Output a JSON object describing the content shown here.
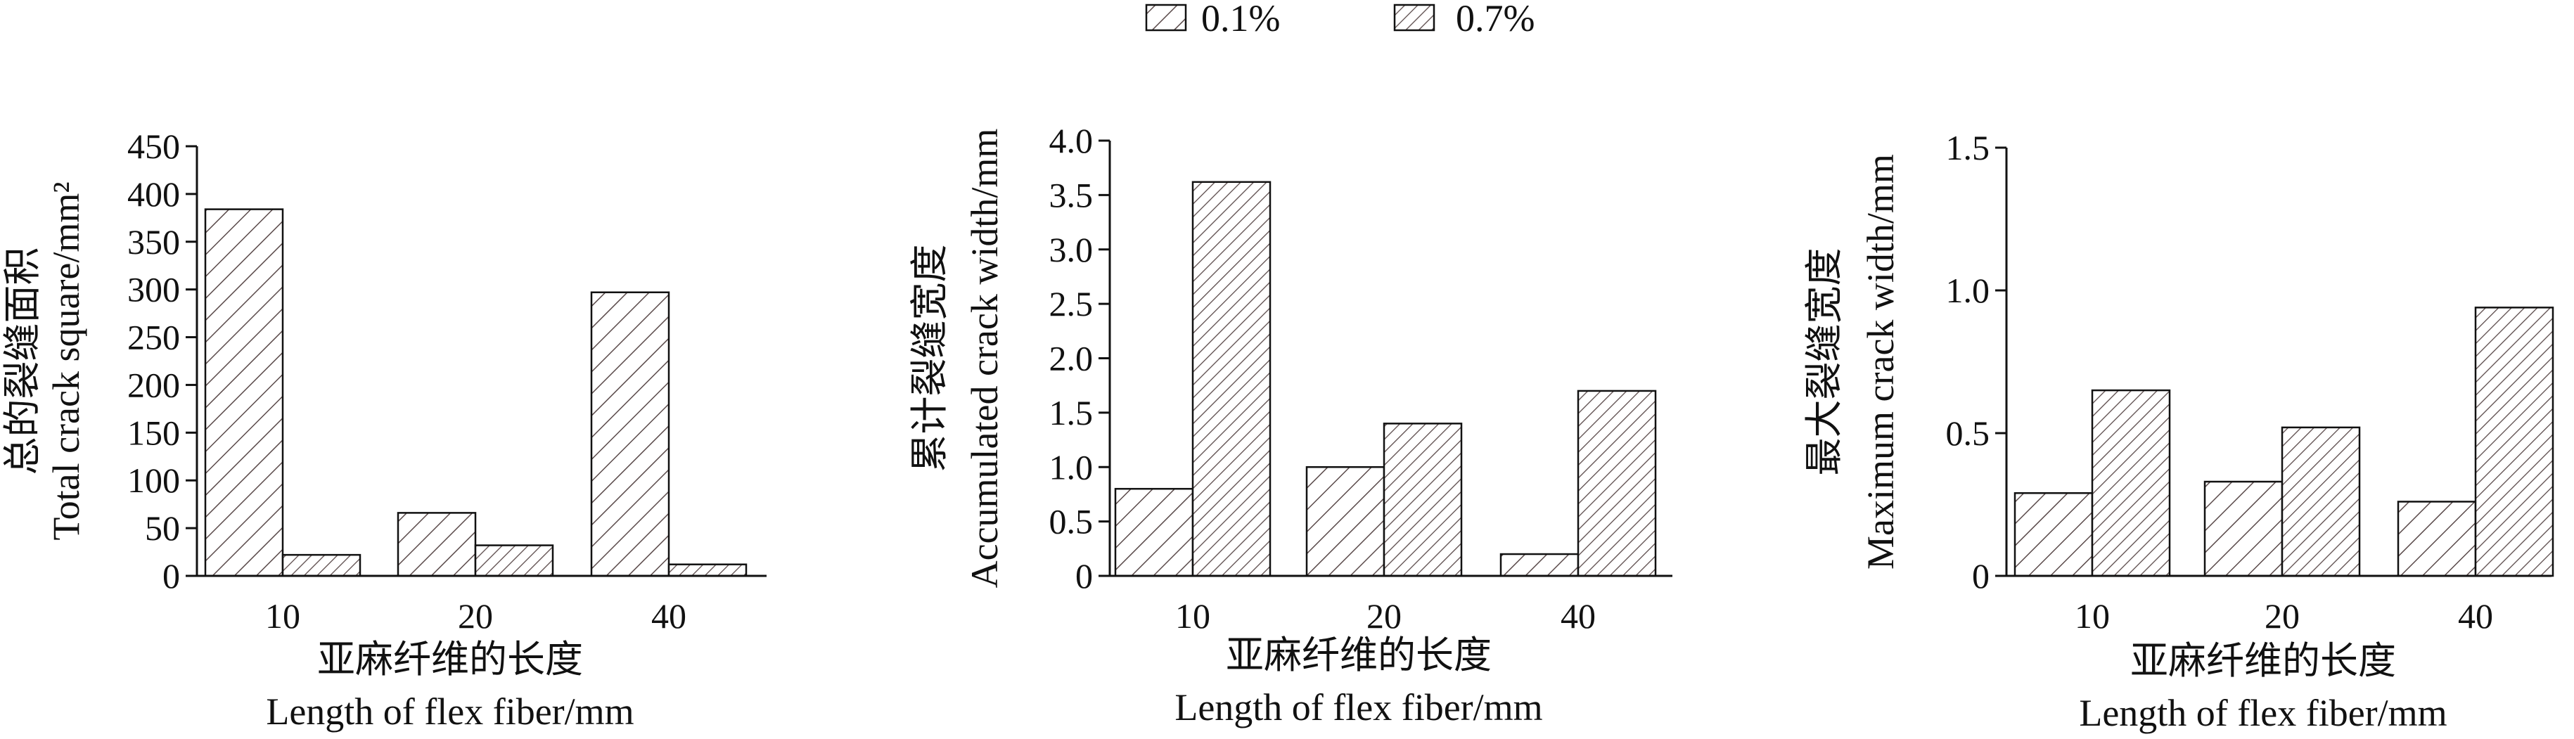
{
  "legend": {
    "items": [
      {
        "label": "0.1%",
        "pattern": "sparse-hatch",
        "color": "#5a4a4a"
      },
      {
        "label": "0.7%",
        "pattern": "dense-hatch",
        "color": "#5a4a4a"
      }
    ]
  },
  "colors": {
    "hatch": "#5a4a4a",
    "axis": "#111111",
    "background": "#ffffff"
  },
  "chart_data": [
    {
      "type": "bar",
      "categories": [
        "10",
        "20",
        "40"
      ],
      "series": [
        {
          "name": "0.1%",
          "values": [
            384,
            66,
            297
          ]
        },
        {
          "name": "0.7%",
          "values": [
            22,
            32,
            12
          ]
        }
      ],
      "ylabel_cn": "总的裂缝面积",
      "ylabel_en": "Total crack square/mm²",
      "xlabel_cn": "亚麻纤维的长度",
      "xlabel_en": "Length of flex fiber/mm",
      "ylim": [
        0,
        450
      ],
      "yticks": [
        "0",
        "50",
        "100",
        "150",
        "200",
        "250",
        "300",
        "350",
        "400",
        "450"
      ],
      "legend": "top-center"
    },
    {
      "type": "bar",
      "categories": [
        "10",
        "20",
        "40"
      ],
      "series": [
        {
          "name": "0.1%",
          "values": [
            0.8,
            1.0,
            0.2
          ]
        },
        {
          "name": "0.7%",
          "values": [
            3.62,
            1.4,
            1.7
          ]
        }
      ],
      "ylabel_cn": "累计裂缝宽度",
      "ylabel_en": "Accumulated crack width/mm",
      "xlabel_cn": "亚麻纤维的长度",
      "xlabel_en": "Length of flex fiber/mm",
      "ylim": [
        0,
        4.0
      ],
      "yticks": [
        "0",
        "0.5",
        "1.0",
        "1.5",
        "2.0",
        "2.5",
        "3.0",
        "3.5",
        "4.0"
      ],
      "legend": "top-center"
    },
    {
      "type": "bar",
      "categories": [
        "10",
        "20",
        "40"
      ],
      "series": [
        {
          "name": "0.1%",
          "values": [
            0.29,
            0.33,
            0.26
          ]
        },
        {
          "name": "0.7%",
          "values": [
            0.65,
            0.52,
            0.94
          ]
        }
      ],
      "ylabel_cn": "最大裂缝宽度",
      "ylabel_en": "Maximum crack width/mm",
      "xlabel_cn": "亚麻纤维的长度",
      "xlabel_en": "Length of flex fiber/mm",
      "ylim": [
        0,
        1.5
      ],
      "yticks": [
        "0",
        "0.5",
        "1.0",
        "1.5"
      ],
      "legend": "top-center"
    }
  ]
}
